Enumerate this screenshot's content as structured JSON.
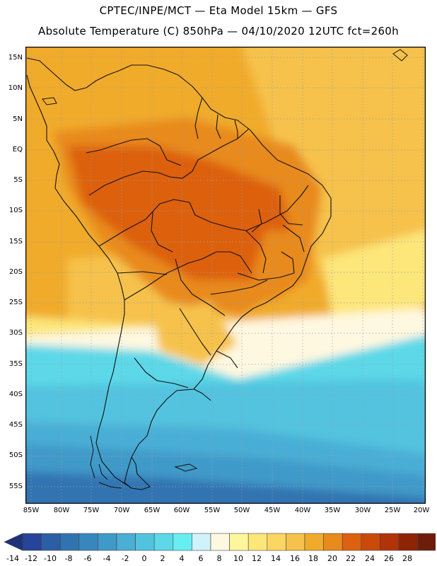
{
  "header": {
    "line1": "CPTEC/INPE/MCT — Eta Model 15km — GFS",
    "line2": "Absolute Temperature (C) 850hPa — 04/10/2020 12UTC fct=260h"
  },
  "map": {
    "field": "Absolute Temperature (C) 850hPa",
    "lat_labels": [
      "15N",
      "10N",
      "5N",
      "EQ",
      "5S",
      "10S",
      "15S",
      "20S",
      "25S",
      "30S",
      "35S",
      "40S",
      "45S",
      "50S",
      "55S"
    ],
    "lon_labels": [
      "85W",
      "80W",
      "75W",
      "70W",
      "65W",
      "60W",
      "55W",
      "50W",
      "45W",
      "40W",
      "35W",
      "30W",
      "25W",
      "20W"
    ]
  },
  "colorbar": {
    "tick_labels": [
      "-14",
      "-12",
      "-10",
      "-8",
      "-6",
      "-4",
      "-2",
      "0",
      "2",
      "4",
      "6",
      "8",
      "10",
      "12",
      "14",
      "16",
      "18",
      "20",
      "22",
      "24",
      "26",
      "28"
    ],
    "colors": [
      "#27449a",
      "#2c5ea5",
      "#3073b1",
      "#3787bd",
      "#3f9ac9",
      "#4aaed5",
      "#52c3df",
      "#5cd8e8",
      "#67eef2",
      "#cff2fb",
      "#fff8e0",
      "#fef69a",
      "#fde67a",
      "#fbd661",
      "#f6c24c",
      "#f1ab2a",
      "#e88a1c",
      "#dd6110",
      "#c94a0b",
      "#b03408",
      "#8e2405",
      "#6e1d0b"
    ],
    "under_color": "#1d3278",
    "over_color": "#7a0d1c"
  }
}
